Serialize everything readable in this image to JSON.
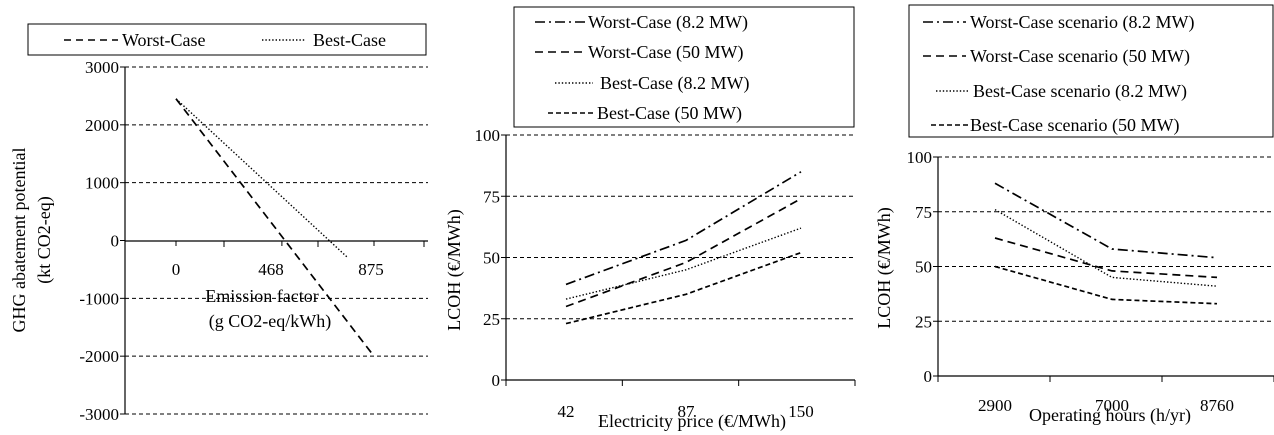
{
  "chart_data": [
    {
      "type": "line",
      "title": "",
      "xlabel_line1": "Emission factor",
      "xlabel_line2": "(g CO2-eq/kWh)",
      "ylabel_line1": "GHG abatement potential",
      "ylabel_line2": "(kt CO2-eq)",
      "x_ticks": [
        "0",
        "468",
        "875"
      ],
      "x_values": [
        0,
        468,
        875
      ],
      "xlim": [
        0,
        875
      ],
      "ylim": [
        -3000,
        3000
      ],
      "y_ticks": [
        -3000,
        -2000,
        -1000,
        0,
        1000,
        2000,
        3000
      ],
      "y_tick_labels": [
        "-3000",
        "-2000",
        "-1000",
        "0",
        "1000",
        "2000",
        "3000"
      ],
      "grid": "horizontal",
      "legend": "top",
      "series": [
        {
          "name": "Worst-Case",
          "style": "dashed",
          "points": [
            [
              0,
              2450
            ],
            [
              875,
              -2000
            ]
          ]
        },
        {
          "name": "Best-Case",
          "style": "dotted",
          "points": [
            [
              0,
              2450
            ],
            [
              760,
              -300
            ]
          ]
        }
      ]
    },
    {
      "type": "line",
      "title": "",
      "xlabel": "Electricity price (€/MWh)",
      "ylabel": "LCOH (€/MWh)",
      "categories": [
        "42",
        "87",
        "150"
      ],
      "ylim": [
        0,
        100
      ],
      "y_ticks": [
        0,
        25,
        50,
        75,
        100
      ],
      "y_tick_labels": [
        "0",
        "25",
        "50",
        "75",
        "100"
      ],
      "grid": "horizontal",
      "legend": "top",
      "series": [
        {
          "name": "Worst-Case (8.2 MW)",
          "style": "dashdot",
          "values": [
            39,
            57,
            85
          ]
        },
        {
          "name": "Worst-Case (50 MW)",
          "style": "dashed",
          "values": [
            30,
            48,
            74
          ]
        },
        {
          "name": "Best-Case (8.2 MW)",
          "style": "dotted",
          "values": [
            33,
            45,
            62
          ]
        },
        {
          "name": "Best-Case (50 MW)",
          "style": "dashed-short",
          "values": [
            23,
            35,
            52
          ]
        }
      ]
    },
    {
      "type": "line",
      "title": "",
      "xlabel": "Operating hours (h/yr)",
      "ylabel": "LCOH (€/MWh)",
      "categories": [
        "2900",
        "7000",
        "8760"
      ],
      "ylim": [
        0,
        100
      ],
      "y_ticks": [
        0,
        25,
        50,
        75,
        100
      ],
      "y_tick_labels": [
        "0",
        "25",
        "50",
        "75",
        "100"
      ],
      "grid": "horizontal",
      "legend": "top",
      "series": [
        {
          "name": "Worst-Case scenario (8.2 MW)",
          "style": "dashdot",
          "values": [
            88,
            58,
            54
          ]
        },
        {
          "name": "Worst-Case scenario (50 MW)",
          "style": "dashed",
          "values": [
            63,
            48,
            45
          ]
        },
        {
          "name": "Best-Case scenario (8.2 MW)",
          "style": "dotted",
          "values": [
            76,
            45,
            41
          ]
        },
        {
          "name": "Best-Case scenario (50 MW)",
          "style": "dashed-short",
          "values": [
            50,
            35,
            33
          ]
        }
      ]
    }
  ]
}
